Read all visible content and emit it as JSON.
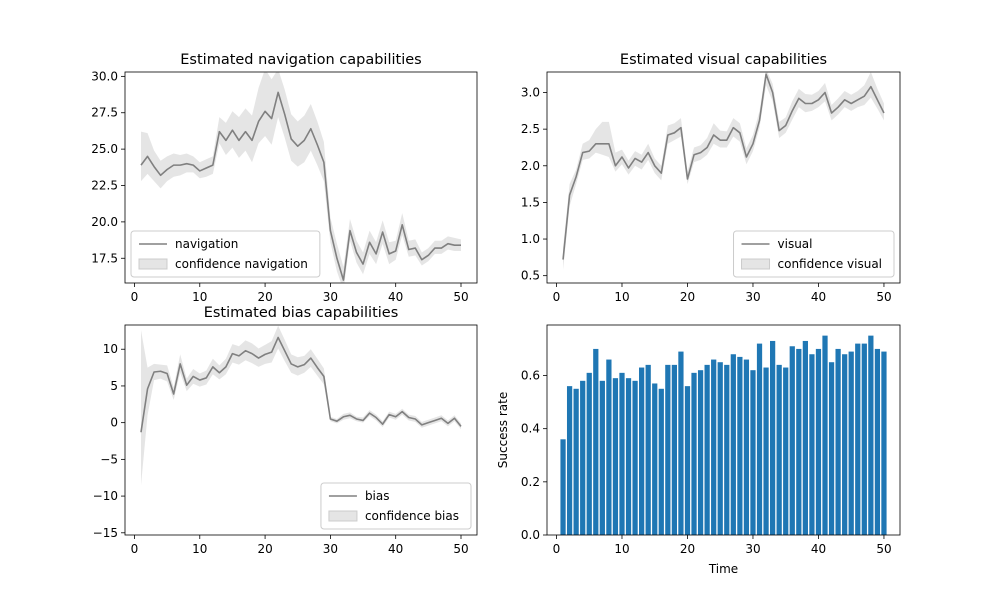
{
  "chart_data": [
    {
      "type": "line",
      "title": "Estimated navigation capabilities",
      "xlabel": "",
      "ylabel": "",
      "xlim": [
        -1.45,
        52.45
      ],
      "ylim": [
        15.8,
        30.3
      ],
      "xticks": [
        0,
        10,
        20,
        30,
        40,
        50
      ],
      "yticks": [
        17.5,
        20.0,
        22.5,
        25.0,
        27.5,
        30.0
      ],
      "ytick_labels": [
        "17.5",
        "20.0",
        "22.5",
        "25.0",
        "27.5",
        "30.0"
      ],
      "legend_position": "lower-left",
      "x": [
        1,
        2,
        3,
        4,
        5,
        6,
        7,
        8,
        9,
        10,
        11,
        12,
        13,
        14,
        15,
        16,
        17,
        18,
        19,
        20,
        21,
        22,
        23,
        24,
        25,
        26,
        27,
        28,
        29,
        30,
        31,
        32,
        33,
        34,
        35,
        36,
        37,
        38,
        39,
        40,
        41,
        42,
        43,
        44,
        45,
        46,
        47,
        48,
        49,
        50
      ],
      "series": [
        {
          "name": "navigation",
          "color": "#808080",
          "values": [
            23.9,
            24.5,
            23.8,
            23.2,
            23.6,
            23.9,
            23.9,
            24.0,
            23.9,
            23.5,
            23.7,
            23.9,
            26.2,
            25.6,
            26.3,
            25.6,
            26.2,
            25.6,
            26.9,
            27.6,
            27.1,
            28.9,
            27.4,
            25.7,
            25.2,
            25.6,
            26.4,
            25.3,
            24.1,
            19.4,
            17.5,
            16.0,
            19.4,
            17.9,
            17.1,
            18.6,
            17.8,
            19.3,
            17.8,
            18.0,
            19.8,
            18.1,
            18.2,
            17.4,
            17.7,
            18.2,
            18.2,
            18.5,
            18.4,
            18.4
          ]
        }
      ],
      "confidence": {
        "name": "confidence navigation",
        "color": "#cccccc",
        "lower": [
          22.8,
          23.3,
          22.8,
          22.3,
          22.8,
          23.1,
          23.2,
          23.4,
          23.4,
          23.0,
          23.1,
          23.3,
          25.4,
          24.6,
          25.1,
          24.4,
          24.9,
          24.1,
          25.4,
          25.9,
          25.3,
          27.2,
          25.8,
          24.2,
          23.8,
          24.1,
          24.9,
          23.9,
          22.8,
          18.6,
          16.6,
          15.3,
          18.7,
          17.2,
          16.4,
          17.8,
          17.1,
          18.5,
          17.1,
          17.4,
          19.1,
          17.6,
          17.7,
          17.0,
          17.3,
          17.8,
          17.8,
          18.1,
          18.0,
          18.0
        ],
        "upper": [
          26.2,
          26.1,
          24.9,
          24.2,
          24.5,
          24.7,
          24.6,
          24.7,
          24.5,
          24.1,
          24.3,
          24.5,
          27.2,
          26.8,
          27.6,
          27.2,
          27.8,
          27.3,
          29.2,
          30.5,
          29.8,
          30.5,
          29.1,
          27.4,
          26.9,
          27.3,
          28.1,
          26.9,
          25.5,
          20.3,
          18.5,
          16.9,
          20.2,
          18.7,
          17.9,
          19.4,
          18.6,
          20.1,
          18.6,
          18.7,
          20.6,
          18.7,
          18.8,
          17.9,
          18.2,
          18.7,
          18.7,
          19.0,
          18.9,
          18.8
        ]
      }
    },
    {
      "type": "line",
      "title": "Estimated visual capabilities",
      "xlabel": "",
      "ylabel": "",
      "xlim": [
        -1.45,
        52.45
      ],
      "ylim": [
        0.4,
        3.28
      ],
      "xticks": [
        0,
        10,
        20,
        30,
        40,
        50
      ],
      "yticks": [
        0.5,
        1.0,
        1.5,
        2.0,
        2.5,
        3.0
      ],
      "ytick_labels": [
        "0.5",
        "1.0",
        "1.5",
        "2.0",
        "2.5",
        "3.0"
      ],
      "legend_position": "lower-right",
      "x": [
        1,
        2,
        3,
        4,
        5,
        6,
        7,
        8,
        9,
        10,
        11,
        12,
        13,
        14,
        15,
        16,
        17,
        18,
        19,
        20,
        21,
        22,
        23,
        24,
        25,
        26,
        27,
        28,
        29,
        30,
        31,
        32,
        33,
        34,
        35,
        36,
        37,
        38,
        39,
        40,
        41,
        42,
        43,
        44,
        45,
        46,
        47,
        48,
        49,
        50
      ],
      "series": [
        {
          "name": "visual",
          "color": "#808080",
          "values": [
            0.72,
            1.6,
            1.85,
            2.18,
            2.2,
            2.3,
            2.3,
            2.3,
            2.0,
            2.12,
            1.97,
            2.1,
            2.05,
            2.18,
            2.0,
            1.9,
            2.42,
            2.45,
            2.52,
            1.82,
            2.15,
            2.18,
            2.25,
            2.42,
            2.35,
            2.35,
            2.52,
            2.45,
            2.12,
            2.3,
            2.62,
            3.25,
            3.0,
            2.48,
            2.55,
            2.75,
            2.92,
            2.85,
            2.85,
            2.9,
            3.0,
            2.72,
            2.8,
            2.9,
            2.85,
            2.9,
            2.95,
            3.08,
            2.9,
            2.72
          ]
        }
      ],
      "confidence": {
        "name": "confidence visual",
        "color": "#cccccc",
        "lower": [
          0.58,
          1.45,
          1.75,
          2.08,
          2.1,
          2.18,
          2.15,
          2.12,
          1.92,
          2.02,
          1.88,
          2.0,
          1.95,
          2.08,
          1.9,
          1.8,
          2.3,
          2.35,
          2.4,
          1.75,
          2.05,
          2.08,
          2.15,
          2.3,
          2.25,
          2.25,
          2.4,
          2.33,
          2.02,
          2.2,
          2.52,
          3.1,
          2.88,
          2.38,
          2.45,
          2.63,
          2.8,
          2.73,
          2.75,
          2.8,
          2.88,
          2.62,
          2.7,
          2.8,
          2.75,
          2.8,
          2.83,
          2.93,
          2.78,
          2.62
        ],
        "upper": [
          0.88,
          1.75,
          1.95,
          2.3,
          2.35,
          2.5,
          2.6,
          2.6,
          2.18,
          2.22,
          2.07,
          2.2,
          2.15,
          2.3,
          2.1,
          2.0,
          2.55,
          2.58,
          2.65,
          1.92,
          2.25,
          2.28,
          2.38,
          2.58,
          2.48,
          2.47,
          2.65,
          2.58,
          2.24,
          2.42,
          2.75,
          3.32,
          3.12,
          2.6,
          2.66,
          2.88,
          3.05,
          2.98,
          2.97,
          3.02,
          3.13,
          2.83,
          2.92,
          3.02,
          2.97,
          3.02,
          3.1,
          3.28,
          3.05,
          2.85
        ]
      }
    },
    {
      "type": "line",
      "title": "Estimated bias capabilities",
      "xlabel": "",
      "ylabel": "",
      "xlim": [
        -1.45,
        52.45
      ],
      "ylim": [
        -15.3,
        13.3
      ],
      "xticks": [
        0,
        10,
        20,
        30,
        40,
        50
      ],
      "yticks": [
        -15,
        -10,
        -5,
        0,
        5,
        10
      ],
      "ytick_labels": [
        "−15",
        "−10",
        "−5",
        "0",
        "5",
        "10"
      ],
      "legend_position": "lower-right",
      "x": [
        1,
        2,
        3,
        4,
        5,
        6,
        7,
        8,
        9,
        10,
        11,
        12,
        13,
        14,
        15,
        16,
        17,
        18,
        19,
        20,
        21,
        22,
        23,
        24,
        25,
        26,
        27,
        28,
        29,
        30,
        31,
        32,
        33,
        34,
        35,
        36,
        37,
        38,
        39,
        40,
        41,
        42,
        43,
        44,
        45,
        46,
        47,
        48,
        49,
        50
      ],
      "series": [
        {
          "name": "bias",
          "color": "#808080",
          "values": [
            -1.3,
            4.6,
            6.9,
            7.0,
            6.7,
            3.9,
            8.0,
            5.1,
            6.3,
            5.8,
            6.1,
            7.6,
            6.8,
            7.6,
            9.4,
            9.1,
            9.8,
            9.4,
            8.8,
            9.3,
            9.6,
            11.6,
            9.8,
            8.0,
            7.6,
            7.9,
            8.8,
            7.5,
            6.3,
            0.5,
            0.2,
            0.8,
            1.0,
            0.5,
            0.3,
            1.3,
            0.7,
            -0.2,
            1.1,
            0.8,
            1.5,
            0.7,
            0.5,
            -0.3,
            0.0,
            0.3,
            0.6,
            -0.1,
            0.6,
            -0.5
          ]
        }
      ],
      "confidence": {
        "name": "confidence bias",
        "color": "#cccccc",
        "lower": [
          -8.5,
          1.0,
          5.8,
          6.0,
          5.6,
          3.1,
          6.8,
          4.3,
          5.3,
          4.9,
          5.2,
          6.6,
          5.9,
          6.6,
          8.2,
          7.9,
          8.5,
          8.1,
          7.6,
          8.0,
          8.2,
          10.1,
          8.4,
          6.8,
          6.4,
          6.8,
          7.6,
          6.4,
          5.2,
          0.2,
          -0.1,
          0.4,
          0.6,
          0.2,
          0.0,
          0.9,
          0.3,
          -0.6,
          0.7,
          0.4,
          1.1,
          0.3,
          0.1,
          -0.7,
          -0.4,
          -0.1,
          0.2,
          -0.5,
          0.2,
          -0.9
        ],
        "upper": [
          12.6,
          7.5,
          8.0,
          7.9,
          7.8,
          4.8,
          9.3,
          6.0,
          7.3,
          6.7,
          7.1,
          8.7,
          7.8,
          8.7,
          10.7,
          10.4,
          11.2,
          10.8,
          10.1,
          10.6,
          11.1,
          13.2,
          11.3,
          9.3,
          8.9,
          9.1,
          10.0,
          8.7,
          7.4,
          0.8,
          0.5,
          1.2,
          1.4,
          0.8,
          0.7,
          1.7,
          1.1,
          0.2,
          1.5,
          1.2,
          1.9,
          1.1,
          0.9,
          0.1,
          0.4,
          0.7,
          1.0,
          0.3,
          1.0,
          -0.1
        ]
      }
    },
    {
      "type": "bar",
      "title": "",
      "xlabel": "Time",
      "ylabel": "Success rate",
      "xlim": [
        -1.45,
        52.45
      ],
      "ylim": [
        0,
        0.79
      ],
      "xticks": [
        0,
        10,
        20,
        30,
        40,
        50
      ],
      "yticks": [
        0.0,
        0.2,
        0.4,
        0.6
      ],
      "ytick_labels": [
        "0.0",
        "0.2",
        "0.4",
        "0.6"
      ],
      "color": "#1f77b4",
      "x": [
        1,
        2,
        3,
        4,
        5,
        6,
        7,
        8,
        9,
        10,
        11,
        12,
        13,
        14,
        15,
        16,
        17,
        18,
        19,
        20,
        21,
        22,
        23,
        24,
        25,
        26,
        27,
        28,
        29,
        30,
        31,
        32,
        33,
        34,
        35,
        36,
        37,
        38,
        39,
        40,
        41,
        42,
        43,
        44,
        45,
        46,
        47,
        48,
        49,
        50
      ],
      "values": [
        0.36,
        0.56,
        0.55,
        0.58,
        0.61,
        0.7,
        0.58,
        0.66,
        0.59,
        0.61,
        0.59,
        0.58,
        0.63,
        0.64,
        0.57,
        0.55,
        0.64,
        0.64,
        0.69,
        0.56,
        0.61,
        0.62,
        0.64,
        0.66,
        0.65,
        0.64,
        0.68,
        0.67,
        0.66,
        0.62,
        0.72,
        0.63,
        0.73,
        0.64,
        0.63,
        0.71,
        0.7,
        0.73,
        0.68,
        0.7,
        0.75,
        0.65,
        0.7,
        0.68,
        0.69,
        0.72,
        0.72,
        0.75,
        0.7,
        0.69
      ]
    }
  ]
}
